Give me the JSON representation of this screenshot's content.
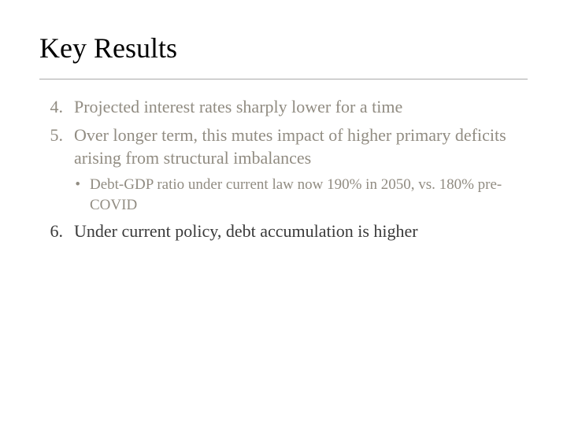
{
  "slide": {
    "title": "Key Results",
    "items": [
      {
        "num": "4.",
        "text": "Projected interest rates sharply lower for a time"
      },
      {
        "num": "5.",
        "text": "Over longer term, this mutes impact of higher primary deficits arising from structural imbalances"
      }
    ],
    "sub_bullet_mark": "•",
    "sub_text": "Debt-GDP ratio under current law now 190% in 2050, vs. 180% pre-COVID",
    "item_dark": {
      "num": "6.",
      "text": "Under current policy, debt accumulation is higher"
    }
  },
  "style": {
    "background_color": "#ffffff",
    "text_muted_color": "#918c82",
    "text_dark_color": "#3a3a3a",
    "divider_color": "#aaaaaa",
    "title_fontsize": 36,
    "item_fontsize": 22,
    "sub_fontsize": 19,
    "font_family": "Georgia, Times New Roman, serif"
  }
}
